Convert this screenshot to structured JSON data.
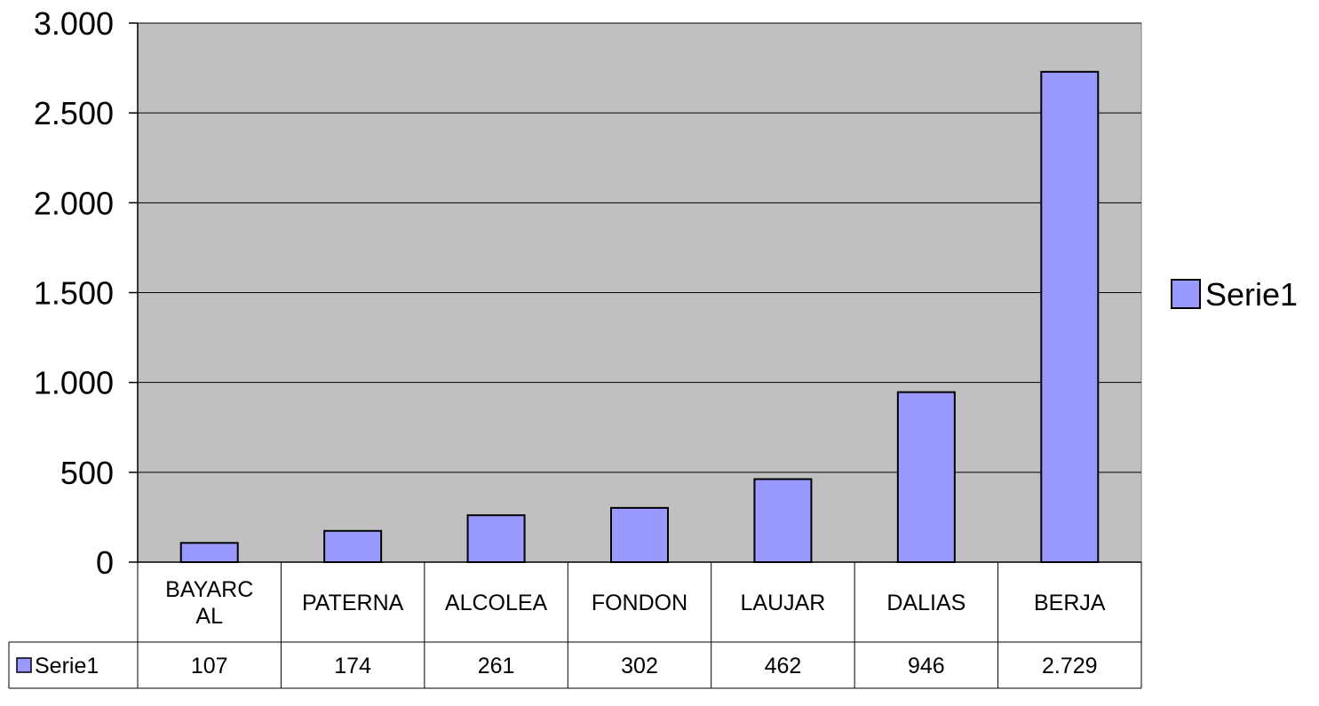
{
  "chart_data": {
    "type": "bar",
    "categories": [
      [
        "BAYARC",
        "AL"
      ],
      [
        "PATERNA"
      ],
      [
        "ALCOLEA"
      ],
      [
        "FONDON"
      ],
      [
        "LAUJAR"
      ],
      [
        "DALIAS"
      ],
      [
        "BERJA"
      ]
    ],
    "series": [
      {
        "name": "Serie1",
        "values": [
          107,
          174,
          261,
          302,
          462,
          946,
          2729
        ],
        "value_labels": [
          "107",
          "174",
          "261",
          "302",
          "462",
          "946",
          "2.729"
        ]
      }
    ],
    "ylim": [
      0,
      3000
    ],
    "yticks": [
      {
        "value": 0,
        "label": "0"
      },
      {
        "value": 500,
        "label": "500"
      },
      {
        "value": 1000,
        "label": "1.000"
      },
      {
        "value": 1500,
        "label": "1.500"
      },
      {
        "value": 2000,
        "label": "2.000"
      },
      {
        "value": 2500,
        "label": "2.500"
      },
      {
        "value": 3000,
        "label": "3.000"
      }
    ],
    "grid": true,
    "legend_position": "right",
    "data_table": true,
    "colors": {
      "plot_background": "#c0c0c0",
      "bar_fill": "#9999ff",
      "bar_stroke": "#000000",
      "gridline": "#000000"
    }
  }
}
